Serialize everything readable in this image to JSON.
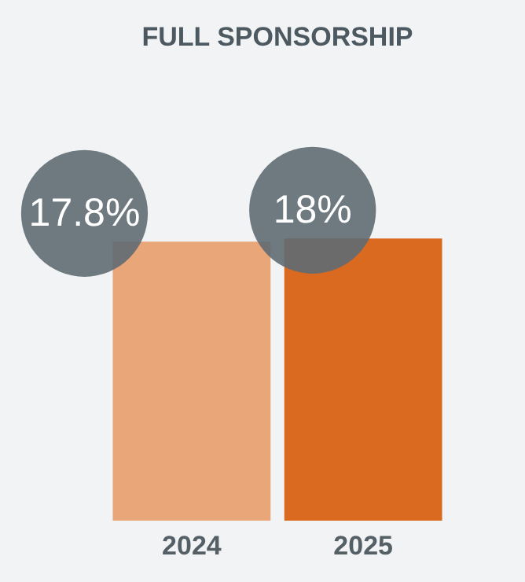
{
  "chart_data": {
    "type": "bar",
    "title": "FULL SPONSORSHIP",
    "categories": [
      "2024",
      "2025"
    ],
    "values": [
      17.8,
      18
    ],
    "colors": [
      "#e9a679",
      "#d96a20"
    ],
    "value_labels": [
      "17.8%",
      "18%"
    ],
    "grid": false,
    "legend": false
  }
}
